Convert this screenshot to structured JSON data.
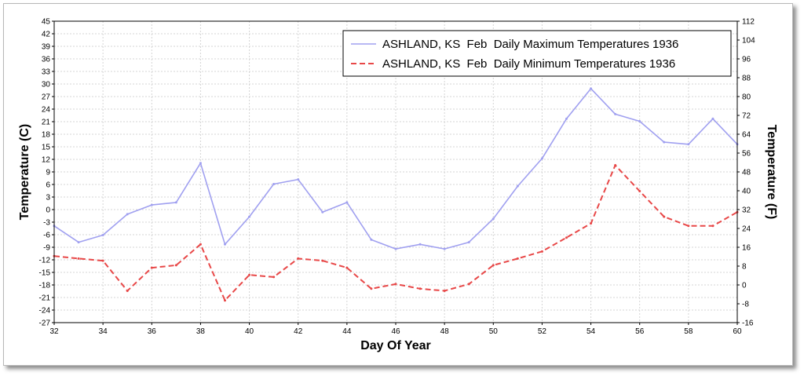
{
  "chart_data": {
    "type": "line",
    "xlabel": "Day Of Year",
    "ylabel_left": "Temperature (C)",
    "ylabel_right": "Temperature (F)",
    "xlim": [
      32,
      60
    ],
    "xticks": [
      32,
      34,
      36,
      38,
      40,
      42,
      44,
      46,
      48,
      50,
      52,
      54,
      56,
      58,
      60
    ],
    "ylim_left": [
      -27,
      45
    ],
    "yticks_left": [
      45,
      42,
      39,
      36,
      33,
      30,
      27,
      24,
      21,
      18,
      15,
      12,
      9,
      6,
      3,
      0,
      -3,
      -6,
      -9,
      -12,
      -15,
      -18,
      -21,
      -24,
      -27
    ],
    "ylim_right": [
      -16,
      112
    ],
    "yticks_right": [
      112,
      104,
      96,
      88,
      80,
      72,
      64,
      56,
      48,
      40,
      32,
      24,
      16,
      8,
      0,
      -8,
      -16
    ],
    "grid": true,
    "legend_position": "top-right",
    "x": [
      32,
      33,
      34,
      35,
      36,
      37,
      38,
      39,
      40,
      41,
      42,
      43,
      44,
      45,
      46,
      47,
      48,
      49,
      50,
      51,
      52,
      53,
      54,
      55,
      56,
      57,
      58,
      59,
      60
    ],
    "series": [
      {
        "name": "ASHLAND, KS  Feb  Daily Maximum Temperatures 1936",
        "color": "#a0a0f0",
        "style": "solid",
        "values": [
          -3.9,
          -7.8,
          -6.1,
          -1.1,
          1.1,
          1.7,
          11.1,
          -8.3,
          -1.7,
          6.1,
          7.2,
          -0.6,
          1.7,
          -7.2,
          -9.4,
          -8.3,
          -9.4,
          -7.8,
          -2.2,
          5.6,
          12.2,
          21.7,
          28.9,
          22.8,
          21.1,
          16.1,
          15.6,
          21.7,
          15.6
        ]
      },
      {
        "name": "ASHLAND, KS  Feb  Daily Minimum Temperatures 1936",
        "color": "#e84848",
        "style": "dashed",
        "values": [
          -11.1,
          -11.7,
          -12.2,
          -19.4,
          -13.9,
          -13.3,
          -8.3,
          -21.7,
          -15.6,
          -16.1,
          -11.7,
          -12.2,
          -13.9,
          -18.9,
          -17.8,
          -18.9,
          -19.4,
          -17.8,
          -13.3,
          -11.7,
          -10.0,
          -6.7,
          -3.3,
          10.6,
          4.4,
          -1.7,
          -3.9,
          -3.9,
          -0.6
        ]
      }
    ]
  }
}
